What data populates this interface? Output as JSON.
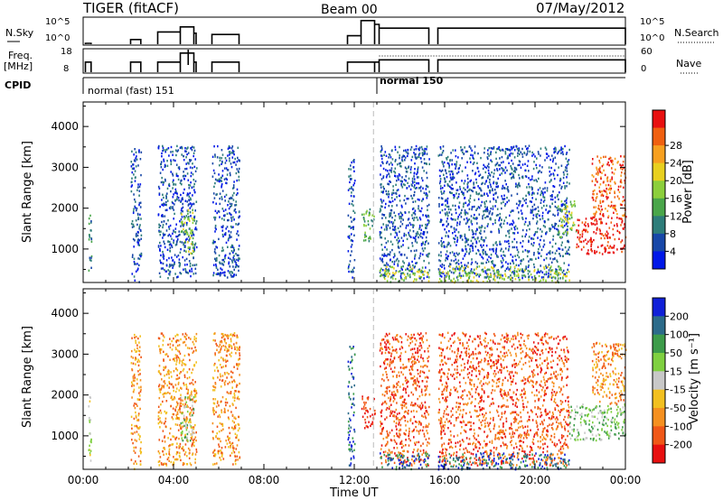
{
  "header": {
    "title": "TIGER (fitACF)",
    "beam": "Beam 00",
    "date": "07/May/2012"
  },
  "status_panels": {
    "nsky": {
      "label": "N.Sky",
      "ticks": [
        "10^5",
        "10^0"
      ],
      "right_label": "N.Search",
      "right_ticks": [
        "10^5",
        "10^0"
      ]
    },
    "freq": {
      "label_top": "Freq.",
      "label_bottom": "[MHz]",
      "ticks": [
        "18",
        "8"
      ],
      "right_label": "Nave",
      "right_ticks": [
        "60",
        "0"
      ]
    },
    "cpid": {
      "label": "CPID",
      "modes": [
        "normal (fast) 151",
        "normal 150"
      ]
    }
  },
  "chart_data": [
    {
      "type": "heatmap",
      "name": "power",
      "ylabel": "Slant Range [km]",
      "xlabel": "Time UT",
      "x_tick_labels": [
        "00:00",
        "04:00",
        "08:00",
        "12:00",
        "16:00",
        "20:00",
        "00:00"
      ],
      "y_tick_labels": [
        "1000",
        "2000",
        "3000",
        "4000"
      ],
      "ylim": [
        180,
        4600
      ],
      "xlim_hours": [
        0,
        24
      ],
      "colorbar": {
        "label": "Power [dB]",
        "tick_labels": [
          "4",
          "8",
          "12",
          "16",
          "20",
          "24",
          "28"
        ],
        "colors": [
          "#0018e8",
          "#1848a8",
          "#2e7d7a",
          "#4aa64a",
          "#8ccf3c",
          "#e8d020",
          "#f7a020",
          "#f06010",
          "#e81010"
        ]
      },
      "data_blocks": [
        {
          "t0": 0.2,
          "t1": 0.35,
          "r0": 300,
          "r1": 2000,
          "level": 2
        },
        {
          "t0": 2.1,
          "t1": 2.55,
          "r0": 200,
          "r1": 3500,
          "level": 1
        },
        {
          "t0": 3.3,
          "t1": 5.0,
          "r0": 300,
          "r1": 3550,
          "level": 1
        },
        {
          "t0": 4.3,
          "t1": 4.9,
          "r0": 900,
          "r1": 2000,
          "level": 4
        },
        {
          "t0": 5.7,
          "t1": 6.9,
          "r0": 300,
          "r1": 3550,
          "level": 1
        },
        {
          "t0": 11.7,
          "t1": 12.0,
          "r0": 300,
          "r1": 3300,
          "level": 1
        },
        {
          "t0": 12.3,
          "t1": 12.9,
          "r0": 1200,
          "r1": 2000,
          "level": 3
        },
        {
          "t0": 13.1,
          "t1": 15.3,
          "r0": 300,
          "r1": 3550,
          "level": 1
        },
        {
          "t0": 13.1,
          "t1": 15.3,
          "r0": 200,
          "r1": 600,
          "level": 4
        },
        {
          "t0": 15.7,
          "t1": 21.5,
          "r0": 300,
          "r1": 3550,
          "level": 1
        },
        {
          "t0": 15.7,
          "t1": 21.5,
          "r0": 200,
          "r1": 600,
          "level": 4
        },
        {
          "t0": 21.0,
          "t1": 21.8,
          "r0": 1300,
          "r1": 2200,
          "level": 4
        },
        {
          "t0": 21.8,
          "t1": 24.0,
          "r0": 900,
          "r1": 1800,
          "level": 8
        },
        {
          "t0": 22.5,
          "t1": 24.0,
          "r0": 1800,
          "r1": 3300,
          "level": 7
        }
      ]
    },
    {
      "type": "heatmap",
      "name": "velocity",
      "ylabel": "Slant Range [km]",
      "xlabel": "Time UT",
      "x_tick_labels": [
        "00:00",
        "04:00",
        "08:00",
        "12:00",
        "16:00",
        "20:00",
        "00:00"
      ],
      "y_tick_labels": [
        "1000",
        "2000",
        "3000",
        "4000"
      ],
      "ylim": [
        180,
        4600
      ],
      "xlim_hours": [
        0,
        24
      ],
      "colorbar": {
        "label": "Velocity [m s⁻¹]",
        "tick_labels": [
          "200",
          "100",
          "50",
          "15",
          "-15",
          "-50",
          "-100",
          "-200"
        ],
        "colors": [
          "#1020d8",
          "#2c6b8a",
          "#3d9c4a",
          "#7fd040",
          "#c8c8c8",
          "#f2c020",
          "#f59020",
          "#f05818",
          "#e81010"
        ]
      },
      "data_blocks": [
        {
          "t0": 0.2,
          "t1": 0.35,
          "r0": 300,
          "r1": 2000,
          "level": 4
        },
        {
          "t0": 2.1,
          "t1": 2.55,
          "r0": 200,
          "r1": 3500,
          "level": 6
        },
        {
          "t0": 3.3,
          "t1": 5.0,
          "r0": 300,
          "r1": 3550,
          "level": 6
        },
        {
          "t0": 4.3,
          "t1": 4.9,
          "r0": 900,
          "r1": 2000,
          "level": 3
        },
        {
          "t0": 5.7,
          "t1": 6.9,
          "r0": 300,
          "r1": 3550,
          "level": 6
        },
        {
          "t0": 11.7,
          "t1": 12.0,
          "r0": 300,
          "r1": 3300,
          "level": 1
        },
        {
          "t0": 12.3,
          "t1": 12.9,
          "r0": 1200,
          "r1": 2000,
          "level": 8
        },
        {
          "t0": 13.1,
          "t1": 15.3,
          "r0": 300,
          "r1": 3550,
          "level": 7
        },
        {
          "t0": 13.1,
          "t1": 15.3,
          "r0": 200,
          "r1": 600,
          "level": 1
        },
        {
          "t0": 15.7,
          "t1": 21.5,
          "r0": 300,
          "r1": 3550,
          "level": 7
        },
        {
          "t0": 15.7,
          "t1": 21.5,
          "r0": 200,
          "r1": 600,
          "level": 1
        },
        {
          "t0": 21.5,
          "t1": 24.0,
          "r0": 900,
          "r1": 1800,
          "level": 3
        },
        {
          "t0": 22.5,
          "t1": 24.0,
          "r0": 1800,
          "r1": 3300,
          "level": 6
        }
      ]
    }
  ]
}
